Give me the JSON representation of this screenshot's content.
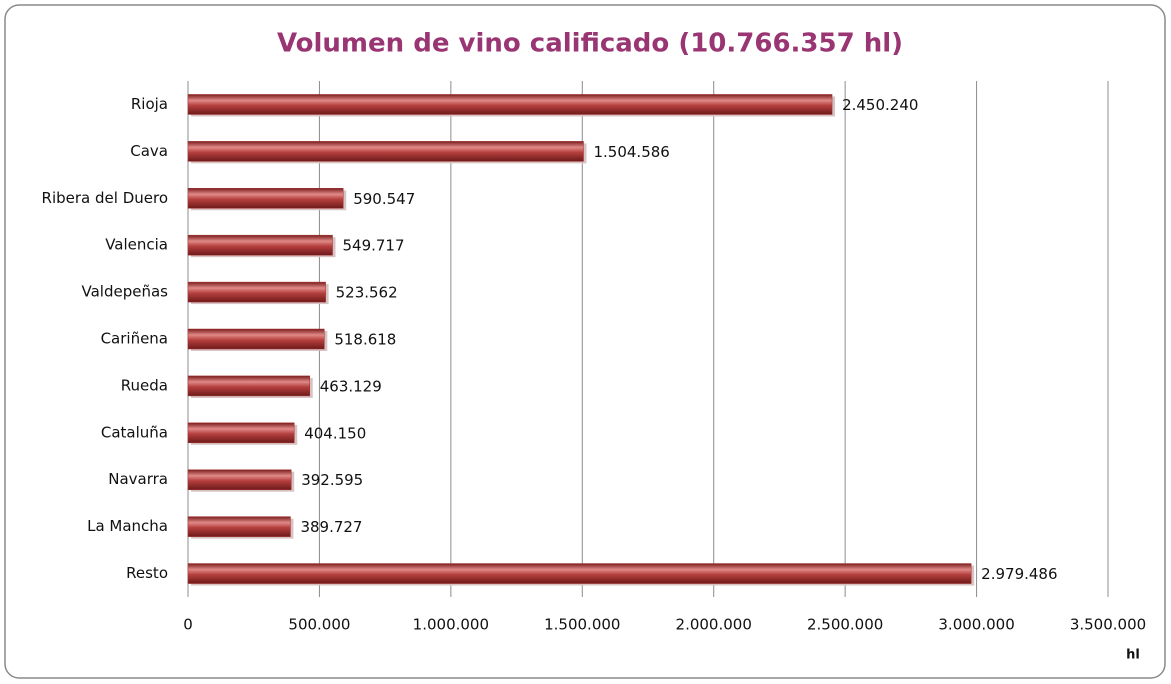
{
  "chart_data": {
    "type": "bar",
    "orientation": "horizontal",
    "title": "Volumen de vino calificado (10.766.357 hl)",
    "x_label": "hl",
    "categories": [
      "Rioja",
      "Cava",
      "Ribera del Duero",
      "Valencia",
      "Valdepeñas",
      "Cariñena",
      "Rueda",
      "Cataluña",
      "Navarra",
      "La Mancha",
      "Resto"
    ],
    "values": [
      2450240,
      1504586,
      590547,
      549717,
      523562,
      518618,
      463129,
      404150,
      392595,
      389727,
      2979486
    ],
    "value_labels": [
      "2.450.240",
      "1.504.586",
      "590.547",
      "549.717",
      "523.562",
      "518.618",
      "463.129",
      "404.150",
      "392.595",
      "389.727",
      "2.979.486"
    ],
    "color": "#a3302f",
    "xlim": [
      0,
      3500000
    ],
    "xticks": [
      0,
      {
        "value": 500000,
        "label": "500.000"
      },
      {
        "value": 1000000,
        "label": "1.000.000"
      },
      {
        "value": 1500000,
        "label": "1.500.000"
      },
      {
        "value": 2000000,
        "label": "2.000.000"
      },
      {
        "value": 2500000,
        "label": "2.500.000"
      },
      {
        "value": 3000000,
        "label": "3.000.000"
      },
      {
        "value": 3500000,
        "label": "3.500.000"
      }
    ],
    "grid": true
  }
}
